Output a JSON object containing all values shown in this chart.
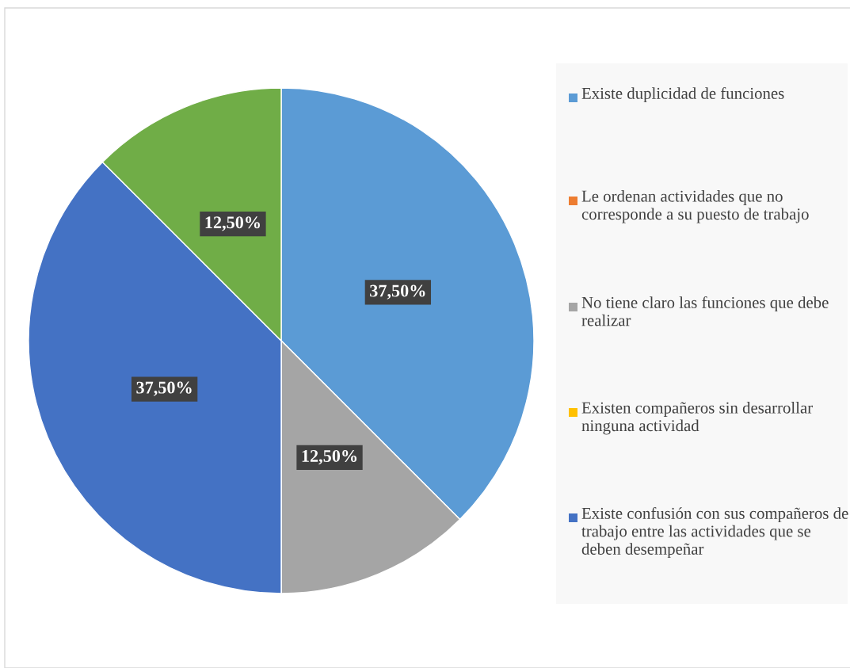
{
  "chart_data": {
    "type": "pie",
    "categories": [
      "Existe duplicidad de funciones",
      "Le ordenan actividades que no corresponde a su puesto de trabajo",
      "No tiene claro las funciones que debe realizar",
      "Existen compañeros sin desarrollar ninguna actividad",
      "Existe confusión con sus compañeros de trabajo entre las actividades que se deben desempeñar",
      null
    ],
    "values": [
      37.5,
      0,
      12.5,
      0,
      37.5,
      12.5
    ],
    "colors": [
      "#5b9bd5",
      "#ed7d31",
      "#a5a5a5",
      "#ffc000",
      "#4472c4",
      "#70ad47"
    ],
    "value_labels": [
      "37,50%",
      null,
      "12,50%",
      null,
      "37,50%",
      "12,50%"
    ],
    "legend": "right"
  }
}
